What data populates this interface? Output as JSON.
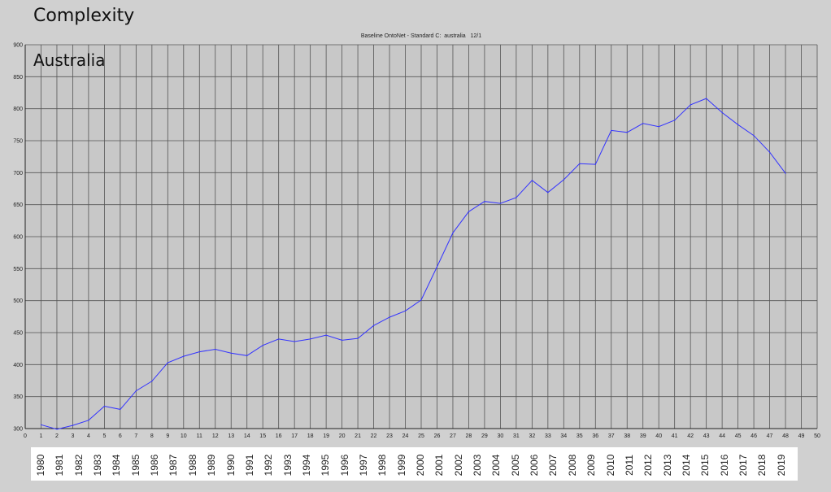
{
  "slide": {
    "heading": "Complexity",
    "country_label": "Australia"
  },
  "colors": {
    "background": "#d0d0d0",
    "plot_background": "#c8c8c8",
    "grid": "#555555",
    "line": "#3333ff"
  },
  "chart_data": {
    "type": "line",
    "title": "Baseline OntoNet - Standard C:  australia   12/1",
    "xlabel": "",
    "ylabel": "",
    "xlim": [
      0,
      50
    ],
    "ylim": [
      300,
      900
    ],
    "x_ticks": [
      0,
      1,
      2,
      3,
      4,
      5,
      6,
      7,
      8,
      9,
      10,
      11,
      12,
      13,
      14,
      15,
      16,
      17,
      18,
      19,
      20,
      21,
      22,
      23,
      24,
      25,
      26,
      27,
      28,
      29,
      30,
      31,
      32,
      33,
      34,
      35,
      36,
      37,
      38,
      39,
      40,
      41,
      42,
      43,
      44,
      45,
      46,
      47,
      48,
      49,
      50
    ],
    "y_ticks": [
      300,
      350,
      400,
      450,
      500,
      550,
      600,
      650,
      700,
      750,
      800,
      850,
      900
    ],
    "grid": true,
    "series": [
      {
        "x": [
          1,
          2,
          3,
          4,
          5,
          6,
          7,
          8,
          9,
          10,
          11,
          12,
          13,
          14,
          15,
          16,
          17,
          18,
          19,
          20,
          21,
          22,
          23,
          24,
          25,
          26,
          27,
          28,
          29,
          30,
          31,
          32,
          33,
          34,
          35,
          36,
          37,
          38,
          39,
          40,
          41,
          42,
          43,
          44,
          45,
          46,
          47,
          48
        ],
        "values": [
          306,
          299,
          305,
          313,
          335,
          330,
          359,
          374,
          403,
          413,
          420,
          424,
          418,
          414,
          430,
          440,
          436,
          440,
          446,
          438,
          441,
          461,
          474,
          484,
          501,
          553,
          606,
          639,
          655,
          652,
          661,
          688,
          669,
          689,
          714,
          713,
          766,
          763,
          777,
          772,
          782,
          806,
          816,
          794,
          775,
          758,
          732,
          699
        ]
      }
    ],
    "year_labels": [
      "1980",
      "1981",
      "1982",
      "1983",
      "1984",
      "1985",
      "1986",
      "1987",
      "1988",
      "1989",
      "1990",
      "1991",
      "1992",
      "1993",
      "1994",
      "1995",
      "1996",
      "1997",
      "1998",
      "1999",
      "2000",
      "2001",
      "2002",
      "2003",
      "2004",
      "2005",
      "2006",
      "2007",
      "2008",
      "2009",
      "2010",
      "2011",
      "2012",
      "2013",
      "2014",
      "2015",
      "2016",
      "2017",
      "2018",
      "2019"
    ]
  }
}
